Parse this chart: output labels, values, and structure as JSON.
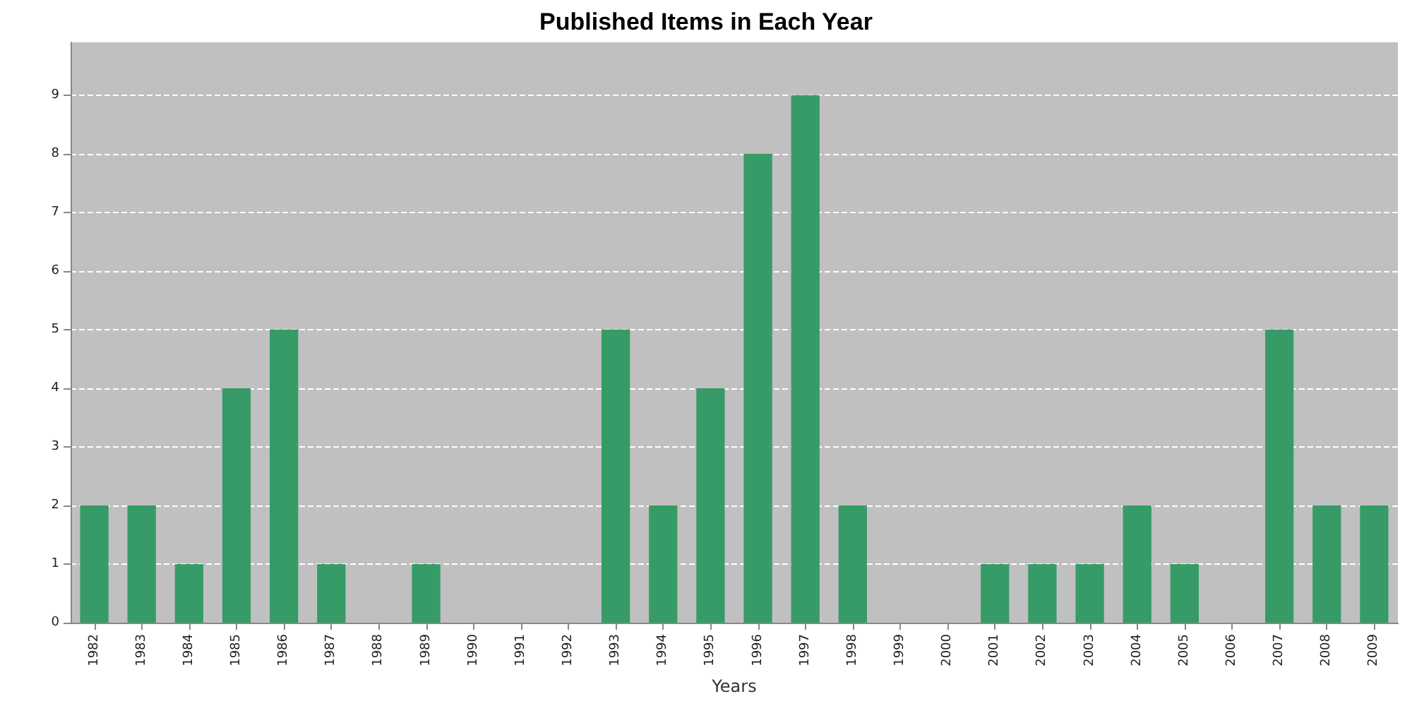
{
  "chart_data": {
    "type": "bar",
    "title": "Published Items in Each Year",
    "xlabel": "Years",
    "categories": [
      "1982",
      "1983",
      "1984",
      "1985",
      "1986",
      "1987",
      "1988",
      "1989",
      "1990",
      "1991",
      "1992",
      "1993",
      "1994",
      "1995",
      "1996",
      "1997",
      "1998",
      "1999",
      "2000",
      "2001",
      "2002",
      "2003",
      "2004",
      "2005",
      "2006",
      "2007",
      "2008",
      "2009"
    ],
    "values": [
      2,
      2,
      1,
      4,
      5,
      1,
      0,
      1,
      0,
      0,
      0,
      5,
      2,
      4,
      8,
      9,
      2,
      0,
      0,
      1,
      1,
      1,
      2,
      1,
      0,
      5,
      2,
      2
    ],
    "color": "#379b68",
    "ylim": [
      0,
      9.9
    ],
    "yticks": [
      0,
      1,
      2,
      3,
      4,
      5,
      6,
      7,
      8,
      9
    ],
    "grid": "y"
  }
}
